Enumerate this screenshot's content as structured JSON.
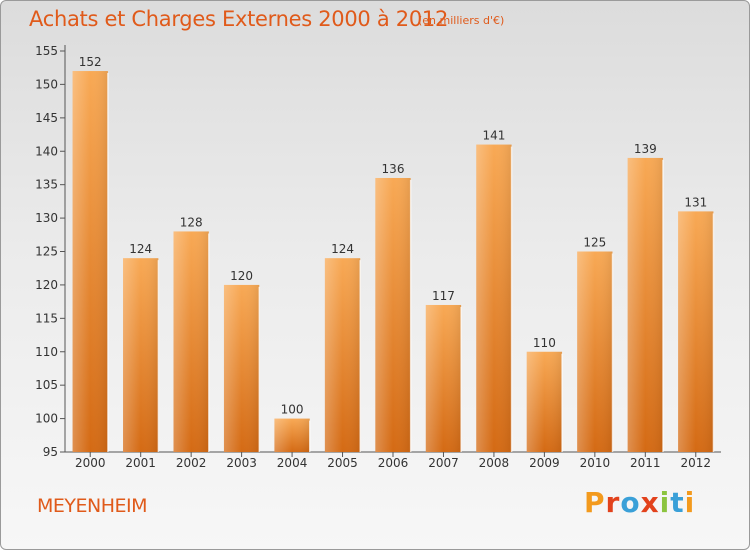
{
  "header": {
    "title": "Achats et Charges Externes 2000 à 2012",
    "subtitle": "(en milliers d'€)"
  },
  "footer": {
    "commune": "MEYENHEIM",
    "logo_text": "Proxiti",
    "logo_colors": [
      "#f39a1d",
      "#e2421c",
      "#3aa0d8",
      "#e2421c",
      "#8cc43f",
      "#3aa0d8",
      "#f39a1d"
    ]
  },
  "colors": {
    "bar_light": "#f8a955",
    "bar_dark": "#d46a14",
    "title": "#e05a1a",
    "axis": "#333333"
  },
  "chart_data": {
    "type": "bar",
    "categories": [
      "2000",
      "2001",
      "2002",
      "2003",
      "2004",
      "2005",
      "2006",
      "2007",
      "2008",
      "2009",
      "2010",
      "2011",
      "2012"
    ],
    "values": [
      152,
      124,
      128,
      120,
      100,
      124,
      136,
      117,
      141,
      110,
      125,
      139,
      131
    ],
    "data_labels": [
      "152",
      "124",
      "128",
      "120",
      "100",
      "124",
      "136",
      "117",
      "141",
      "110",
      "125",
      "139",
      "131"
    ],
    "yticks": [
      "95",
      "100",
      "105",
      "110",
      "115",
      "120",
      "125",
      "130",
      "135",
      "140",
      "145",
      "150",
      "155"
    ],
    "ylim": [
      95,
      155
    ],
    "grid": false,
    "legend": "none"
  }
}
